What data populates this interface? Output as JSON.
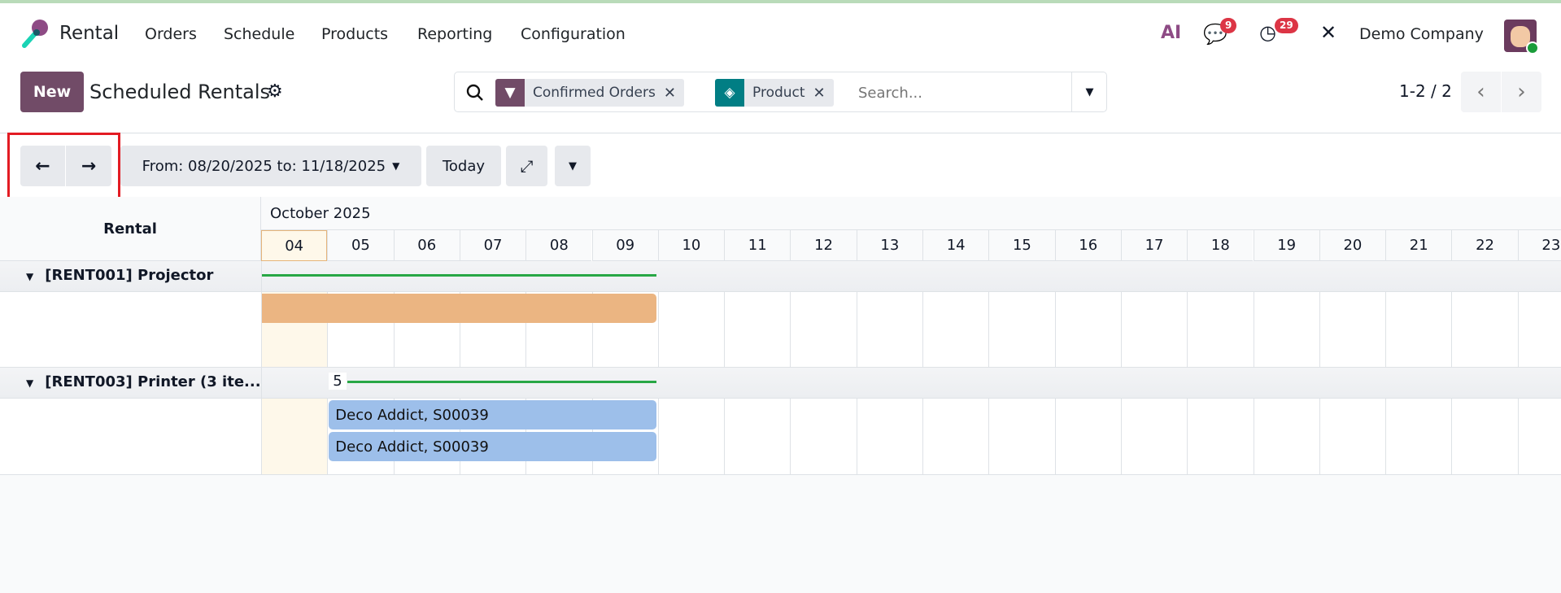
{
  "navbar": {
    "app_name": "Rental",
    "menu": [
      "Orders",
      "Schedule",
      "Products",
      "Reporting",
      "Configuration"
    ],
    "messages_count": "9",
    "activities_count": "29",
    "company": "Demo Company",
    "ai_label": "AI"
  },
  "control_panel": {
    "new_label": "New",
    "title": "Scheduled Rentals",
    "facets": [
      {
        "icon": "filter-icon",
        "label": "Confirmed Orders",
        "color": "#714B67"
      },
      {
        "icon": "layers-icon",
        "label": "Product",
        "color": "#017E84"
      }
    ],
    "search_placeholder": "Search...",
    "pager": "1-2 / 2"
  },
  "toolbar": {
    "date_range": "From: 08/20/2025 to: 11/18/2025",
    "today_label": "Today"
  },
  "gantt": {
    "row_header": "Rental",
    "month": "October 2025",
    "days": [
      "04",
      "05",
      "06",
      "07",
      "08",
      "09",
      "10",
      "11",
      "12",
      "13",
      "14",
      "15",
      "16",
      "17",
      "18",
      "19",
      "20",
      "21",
      "22",
      "23"
    ],
    "today": "04",
    "groups": [
      {
        "label": "[RENT001] Projector",
        "count": "",
        "pills": [
          {
            "label": "",
            "start": "04",
            "end": "09",
            "color": "#ebb582"
          }
        ]
      },
      {
        "label": "[RENT003] Printer (3 ite...",
        "count": "5",
        "pills": [
          {
            "label": "Deco Addict, S00039",
            "start": "05",
            "end": "09",
            "color": "#9dbfea"
          },
          {
            "label": "Deco Addict, S00039",
            "start": "05",
            "end": "09",
            "color": "#9dbfea"
          }
        ]
      }
    ]
  },
  "colors": {
    "brand": "#714B67",
    "progress": "#28a745",
    "highlight": "#e31b23"
  }
}
